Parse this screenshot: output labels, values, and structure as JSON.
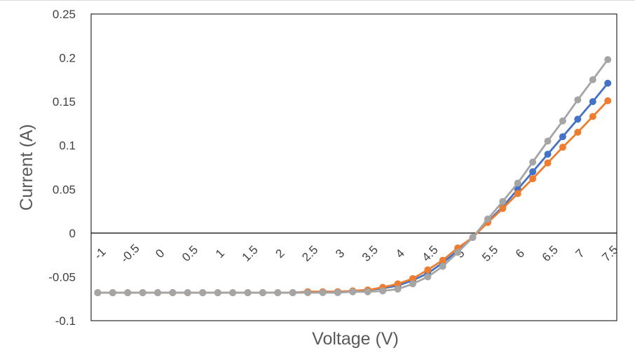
{
  "chart_data": {
    "type": "line",
    "xlabel": "Voltage (V)",
    "ylabel": "Current (A)",
    "x": [
      -1,
      -0.75,
      -0.5,
      -0.25,
      0,
      0.25,
      0.5,
      0.75,
      1,
      1.25,
      1.5,
      1.75,
      2,
      2.25,
      2.5,
      2.75,
      3,
      3.25,
      3.5,
      3.75,
      4,
      4.25,
      4.5,
      4.75,
      5,
      5.25,
      5.5,
      5.75,
      6,
      6.25,
      6.5,
      6.75,
      7,
      7.25,
      7.5
    ],
    "x_tick_labels": [
      "-1",
      "-0.5",
      "0",
      "0.5",
      "1",
      "1.5",
      "2",
      "2.5",
      "3",
      "3.5",
      "4",
      "4.5",
      "5",
      "5.5",
      "6",
      "6.5",
      "7",
      "7.5"
    ],
    "x_tick_values": [
      -1,
      -0.5,
      0,
      0.5,
      1,
      1.5,
      2,
      2.5,
      3,
      3.5,
      4,
      4.5,
      5,
      5.5,
      6,
      6.5,
      7,
      7.5
    ],
    "y_tick_labels": [
      "0.25",
      "0.2",
      "0.15",
      "0.1",
      "0.05",
      "0",
      "-0.05",
      "-0.1"
    ],
    "y_tick_values": [
      0.25,
      0.2,
      0.15,
      0.1,
      0.05,
      0,
      -0.05,
      -0.1
    ],
    "xlim": [
      -1.11,
      7.65
    ],
    "ylim": [
      -0.1,
      0.25
    ],
    "grid": false,
    "series": [
      {
        "color": "#4472C4",
        "values": [
          -0.068,
          -0.068,
          -0.068,
          -0.068,
          -0.068,
          -0.068,
          -0.068,
          -0.068,
          -0.068,
          -0.068,
          -0.068,
          -0.068,
          -0.068,
          -0.068,
          -0.067,
          -0.067,
          -0.067,
          -0.066,
          -0.065,
          -0.063,
          -0.06,
          -0.054,
          -0.046,
          -0.034,
          -0.02,
          -0.005,
          0.013,
          0.03,
          0.05,
          0.07,
          0.09,
          0.11,
          0.13,
          0.15,
          0.171
        ]
      },
      {
        "color": "#ED7D31",
        "values": [
          -0.068,
          -0.068,
          -0.068,
          -0.068,
          -0.068,
          -0.068,
          -0.068,
          -0.068,
          -0.068,
          -0.068,
          -0.068,
          -0.068,
          -0.068,
          -0.068,
          -0.067,
          -0.067,
          -0.067,
          -0.066,
          -0.065,
          -0.062,
          -0.058,
          -0.052,
          -0.042,
          -0.031,
          -0.017,
          -0.005,
          0.012,
          0.028,
          0.045,
          0.062,
          0.08,
          0.098,
          0.115,
          0.133,
          0.151
        ]
      },
      {
        "color": "#A5A5A5",
        "values": [
          -0.068,
          -0.068,
          -0.068,
          -0.068,
          -0.068,
          -0.068,
          -0.068,
          -0.068,
          -0.068,
          -0.068,
          -0.068,
          -0.068,
          -0.068,
          -0.068,
          -0.068,
          -0.068,
          -0.068,
          -0.067,
          -0.067,
          -0.066,
          -0.064,
          -0.058,
          -0.05,
          -0.038,
          -0.022,
          -0.005,
          0.016,
          0.036,
          0.057,
          0.081,
          0.105,
          0.128,
          0.152,
          0.175,
          0.198
        ]
      }
    ]
  }
}
